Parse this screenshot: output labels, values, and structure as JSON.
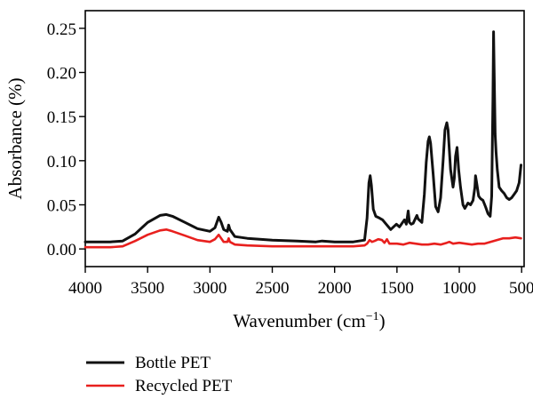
{
  "chart_data": {
    "type": "line",
    "title": "",
    "xlabel": "Wavenumber (cm",
    "xlabel_sup": "−1",
    "xlabel_tail": ")",
    "ylabel": "Absorbance (%)",
    "xlim": [
      4000,
      480
    ],
    "ylim": [
      -0.02,
      0.27
    ],
    "x_reversed": true,
    "x_ticks": [
      4000,
      3500,
      3000,
      2500,
      2000,
      1500,
      1000,
      500
    ],
    "x_tick_labels": [
      "4000",
      "3500",
      "3000",
      "2500",
      "2000",
      "1500",
      "1000",
      "500"
    ],
    "y_ticks": [
      0.0,
      0.05,
      0.1,
      0.15,
      0.2,
      0.25
    ],
    "y_tick_labels": [
      "0.00",
      "0.05",
      "0.10",
      "0.15",
      "0.20",
      "0.25"
    ],
    "grid": false,
    "legend_position": "bottom-left, below plot",
    "series": [
      {
        "name": "Bottle PET",
        "color": "#111111",
        "points": [
          [
            4000,
            0.008
          ],
          [
            3800,
            0.008
          ],
          [
            3700,
            0.009
          ],
          [
            3600,
            0.017
          ],
          [
            3500,
            0.03
          ],
          [
            3400,
            0.038
          ],
          [
            3350,
            0.039
          ],
          [
            3300,
            0.037
          ],
          [
            3200,
            0.03
          ],
          [
            3100,
            0.023
          ],
          [
            3000,
            0.02
          ],
          [
            2960,
            0.024
          ],
          [
            2930,
            0.036
          ],
          [
            2910,
            0.03
          ],
          [
            2890,
            0.022
          ],
          [
            2860,
            0.02
          ],
          [
            2850,
            0.027
          ],
          [
            2840,
            0.022
          ],
          [
            2800,
            0.014
          ],
          [
            2700,
            0.012
          ],
          [
            2500,
            0.01
          ],
          [
            2300,
            0.009
          ],
          [
            2150,
            0.008
          ],
          [
            2100,
            0.009
          ],
          [
            2000,
            0.008
          ],
          [
            1850,
            0.008
          ],
          [
            1760,
            0.01
          ],
          [
            1740,
            0.035
          ],
          [
            1725,
            0.075
          ],
          [
            1715,
            0.083
          ],
          [
            1705,
            0.072
          ],
          [
            1690,
            0.045
          ],
          [
            1670,
            0.037
          ],
          [
            1640,
            0.035
          ],
          [
            1615,
            0.033
          ],
          [
            1580,
            0.027
          ],
          [
            1550,
            0.022
          ],
          [
            1505,
            0.028
          ],
          [
            1480,
            0.025
          ],
          [
            1455,
            0.03
          ],
          [
            1440,
            0.033
          ],
          [
            1425,
            0.028
          ],
          [
            1410,
            0.043
          ],
          [
            1400,
            0.03
          ],
          [
            1385,
            0.028
          ],
          [
            1370,
            0.029
          ],
          [
            1340,
            0.038
          ],
          [
            1330,
            0.034
          ],
          [
            1300,
            0.03
          ],
          [
            1280,
            0.062
          ],
          [
            1265,
            0.098
          ],
          [
            1250,
            0.122
          ],
          [
            1240,
            0.127
          ],
          [
            1230,
            0.12
          ],
          [
            1210,
            0.085
          ],
          [
            1190,
            0.048
          ],
          [
            1170,
            0.042
          ],
          [
            1150,
            0.058
          ],
          [
            1130,
            0.1
          ],
          [
            1115,
            0.135
          ],
          [
            1100,
            0.143
          ],
          [
            1090,
            0.135
          ],
          [
            1070,
            0.09
          ],
          [
            1050,
            0.07
          ],
          [
            1040,
            0.08
          ],
          [
            1030,
            0.105
          ],
          [
            1018,
            0.115
          ],
          [
            1005,
            0.09
          ],
          [
            990,
            0.07
          ],
          [
            970,
            0.05
          ],
          [
            955,
            0.046
          ],
          [
            930,
            0.052
          ],
          [
            910,
            0.05
          ],
          [
            890,
            0.055
          ],
          [
            875,
            0.07
          ],
          [
            870,
            0.083
          ],
          [
            860,
            0.074
          ],
          [
            845,
            0.06
          ],
          [
            830,
            0.057
          ],
          [
            810,
            0.055
          ],
          [
            790,
            0.048
          ],
          [
            770,
            0.04
          ],
          [
            752,
            0.037
          ],
          [
            740,
            0.06
          ],
          [
            730,
            0.17
          ],
          [
            725,
            0.246
          ],
          [
            720,
            0.2
          ],
          [
            712,
            0.13
          ],
          [
            705,
            0.11
          ],
          [
            695,
            0.09
          ],
          [
            680,
            0.07
          ],
          [
            660,
            0.066
          ],
          [
            640,
            0.063
          ],
          [
            620,
            0.058
          ],
          [
            600,
            0.056
          ],
          [
            580,
            0.058
          ],
          [
            560,
            0.062
          ],
          [
            540,
            0.066
          ],
          [
            520,
            0.075
          ],
          [
            505,
            0.095
          ]
        ]
      },
      {
        "name": "Recycled PET",
        "color": "#e8201e",
        "points": [
          [
            4000,
            0.002
          ],
          [
            3800,
            0.002
          ],
          [
            3700,
            0.003
          ],
          [
            3600,
            0.009
          ],
          [
            3500,
            0.016
          ],
          [
            3400,
            0.021
          ],
          [
            3350,
            0.022
          ],
          [
            3300,
            0.02
          ],
          [
            3200,
            0.015
          ],
          [
            3100,
            0.01
          ],
          [
            3000,
            0.008
          ],
          [
            2960,
            0.011
          ],
          [
            2930,
            0.016
          ],
          [
            2910,
            0.012
          ],
          [
            2890,
            0.008
          ],
          [
            2860,
            0.008
          ],
          [
            2850,
            0.012
          ],
          [
            2840,
            0.008
          ],
          [
            2800,
            0.005
          ],
          [
            2700,
            0.004
          ],
          [
            2500,
            0.003
          ],
          [
            2300,
            0.003
          ],
          [
            2000,
            0.003
          ],
          [
            1850,
            0.003
          ],
          [
            1760,
            0.004
          ],
          [
            1740,
            0.006
          ],
          [
            1720,
            0.01
          ],
          [
            1700,
            0.008
          ],
          [
            1680,
            0.009
          ],
          [
            1650,
            0.011
          ],
          [
            1620,
            0.01
          ],
          [
            1600,
            0.007
          ],
          [
            1580,
            0.011
          ],
          [
            1560,
            0.006
          ],
          [
            1500,
            0.006
          ],
          [
            1450,
            0.005
          ],
          [
            1400,
            0.007
          ],
          [
            1350,
            0.006
          ],
          [
            1300,
            0.005
          ],
          [
            1250,
            0.005
          ],
          [
            1200,
            0.006
          ],
          [
            1150,
            0.005
          ],
          [
            1100,
            0.007
          ],
          [
            1080,
            0.008
          ],
          [
            1050,
            0.006
          ],
          [
            1000,
            0.007
          ],
          [
            950,
            0.006
          ],
          [
            900,
            0.005
          ],
          [
            850,
            0.006
          ],
          [
            800,
            0.006
          ],
          [
            750,
            0.008
          ],
          [
            700,
            0.01
          ],
          [
            650,
            0.012
          ],
          [
            600,
            0.012
          ],
          [
            550,
            0.013
          ],
          [
            505,
            0.012
          ]
        ]
      }
    ]
  }
}
